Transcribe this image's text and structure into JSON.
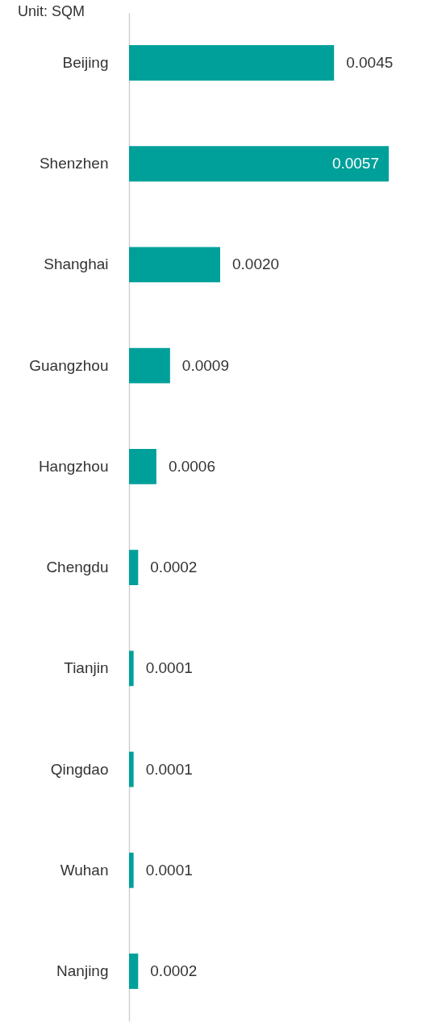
{
  "chart_data": {
    "type": "bar",
    "orientation": "horizontal",
    "subtitle": "Unit: SQM",
    "categories": [
      "Beijing",
      "Shenzhen",
      "Shanghai",
      "Guangzhou",
      "Hangzhou",
      "Chengdu",
      "Tianjin",
      "Qingdao",
      "Wuhan",
      "Nanjing"
    ],
    "values": [
      0.0045,
      0.0057,
      0.002,
      0.0009,
      0.0006,
      0.0002,
      0.0001,
      0.0001,
      0.0001,
      0.0002
    ],
    "value_labels": [
      "0.0045",
      "0.0057",
      "0.0020",
      "0.0009",
      "0.0006",
      "0.0002",
      "0.0001",
      "0.0001",
      "0.0001",
      "0.0002"
    ],
    "color": "#00a09a"
  }
}
